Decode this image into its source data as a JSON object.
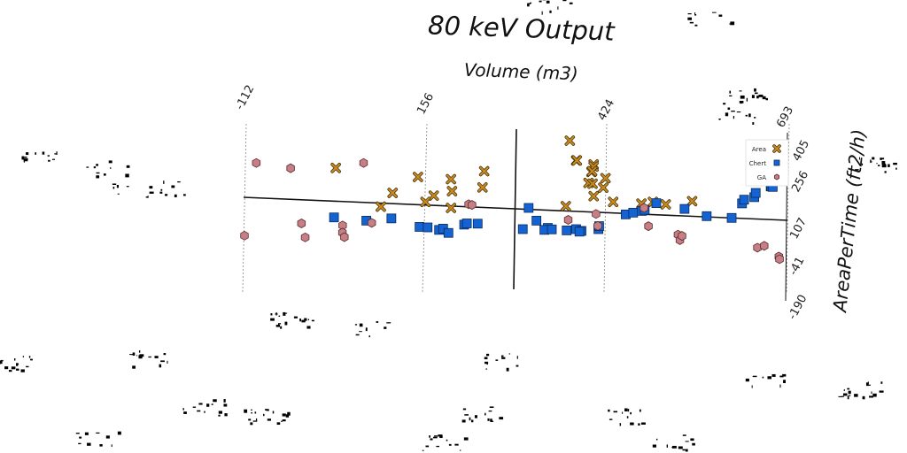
{
  "chart_data": {
    "type": "scatter",
    "title": "80 keV Output",
    "xlabel": "Volume (m3)",
    "ylabel": "AreaPerTime (ft2/h)",
    "xlim": [
      -112,
      693
    ],
    "ylim": [
      -190,
      405
    ],
    "x_ticks": [
      "-112",
      "156",
      "424",
      "693"
    ],
    "y_ticks": [
      "405",
      "256",
      "107",
      "-41",
      "-190"
    ],
    "grid": "vertical dashed",
    "legend_position": "right",
    "series": [
      {
        "name": "Area",
        "marker": "x",
        "color": "#c8891f",
        "points": [
          [
            22,
            264
          ],
          [
            107,
            164
          ],
          [
            90,
            109
          ],
          [
            144,
            228
          ],
          [
            168,
            153
          ],
          [
            193,
            219
          ],
          [
            195,
            171
          ],
          [
            194,
            104
          ],
          [
            156,
            128
          ],
          [
            242,
            251
          ],
          [
            240,
            186
          ],
          [
            364,
            111
          ],
          [
            368,
            373
          ],
          [
            378,
            294
          ],
          [
            379,
            294
          ],
          [
            404,
            278
          ],
          [
            404,
            269
          ],
          [
            401,
            248
          ],
          [
            402,
            251
          ],
          [
            397,
            204
          ],
          [
            403,
            201
          ],
          [
            405,
            151
          ],
          [
            422,
            223
          ],
          [
            419,
            185
          ],
          [
            434,
            128
          ],
          [
            476,
            121
          ],
          [
            493,
            128
          ],
          [
            512,
            118
          ],
          [
            551,
            131
          ]
        ]
      },
      {
        "name": "Chert",
        "marker": "square",
        "color": "#1463d4",
        "points": [
          [
            21,
            66
          ],
          [
            69,
            53
          ],
          [
            106,
            62
          ],
          [
            148,
            28
          ],
          [
            160,
            26
          ],
          [
            177,
            16
          ],
          [
            183,
            21
          ],
          [
            191,
            4
          ],
          [
            214,
            37
          ],
          [
            218,
            42
          ],
          [
            234,
            41
          ],
          [
            301,
            19
          ],
          [
            309,
            104
          ],
          [
            321,
            53
          ],
          [
            338,
            24
          ],
          [
            333,
            16
          ],
          [
            344,
            18
          ],
          [
            366,
            14
          ],
          [
            380,
            19
          ],
          [
            388,
            12
          ],
          [
            385,
            9
          ],
          [
            413,
            19
          ],
          [
            414,
            31
          ],
          [
            453,
            78
          ],
          [
            464,
            85
          ],
          [
            477,
            92
          ],
          [
            481,
            96
          ],
          [
            498,
            123
          ],
          [
            540,
            100
          ],
          [
            573,
            71
          ],
          [
            610,
            64
          ],
          [
            625,
            122
          ],
          [
            628,
            137
          ],
          [
            643,
            147
          ],
          [
            645,
            164
          ],
          [
            667,
            190
          ],
          [
            668,
            190
          ],
          [
            670,
            188
          ]
        ]
      },
      {
        "name": "GA",
        "marker": "hexagon",
        "color": "#c67f84",
        "points": [
          [
            -111,
            -7
          ],
          [
            -96,
            284
          ],
          [
            -45,
            263
          ],
          [
            -27,
            42
          ],
          [
            -21,
            -14
          ],
          [
            34,
            34
          ],
          [
            34,
            5
          ],
          [
            37,
            -13
          ],
          [
            63,
            284
          ],
          [
            77,
            44
          ],
          [
            220,
            119
          ],
          [
            225,
            116
          ],
          [
            368,
            56
          ],
          [
            409,
            80
          ],
          [
            412,
            32
          ],
          [
            480,
            104
          ],
          [
            487,
            31
          ],
          [
            531,
            -3
          ],
          [
            534,
            -25
          ],
          [
            537,
            -8
          ],
          [
            649,
            -55
          ],
          [
            659,
            -48
          ],
          [
            681,
            -91
          ],
          [
            682,
            -101
          ]
        ]
      }
    ]
  }
}
